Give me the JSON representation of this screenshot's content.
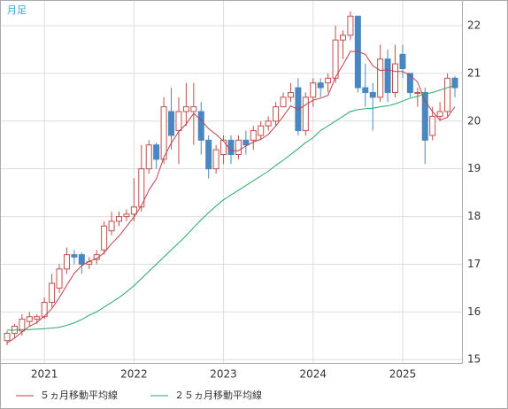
{
  "chart_data": {
    "type": "candlestick",
    "label": "月足",
    "xticks": [
      "2021",
      "2022",
      "2023",
      "2024",
      "2025"
    ],
    "ylim": [
      14.93,
      22.52
    ],
    "yticks": [
      15,
      16,
      17,
      18,
      19,
      20,
      21,
      22
    ],
    "grid": true,
    "up_color": "#ffffff",
    "up_stroke": "#c0504d",
    "down_color": "#4a86c0",
    "candles": {
      "open": [
        15.4,
        15.55,
        15.6,
        15.8,
        15.85,
        15.9,
        16.2,
        16.5,
        16.9,
        17.2,
        17.2,
        17.0,
        17.1,
        17.3,
        17.7,
        17.9,
        18.0,
        18.05,
        18.2,
        19.0,
        19.5,
        19.2,
        20.2,
        19.8,
        20.2,
        20.2,
        20.2,
        19.6,
        19.0,
        19.3,
        19.6,
        19.3,
        19.6,
        19.6,
        19.7,
        19.9,
        20.0,
        20.3,
        20.5,
        20.7,
        19.8,
        20.5,
        20.8,
        20.8,
        20.9,
        21.7,
        21.8,
        22.2,
        20.7,
        20.6,
        20.5,
        21.3,
        20.6,
        21.4,
        21.0,
        20.6,
        20.6,
        19.7,
        20.1,
        20.2,
        20.9
      ],
      "high": [
        15.6,
        15.75,
        15.95,
        16.0,
        15.95,
        16.3,
        16.8,
        17.0,
        17.35,
        17.3,
        17.25,
        17.15,
        17.3,
        17.9,
        18.1,
        18.1,
        18.15,
        18.8,
        19.5,
        19.6,
        19.55,
        20.5,
        20.7,
        20.5,
        20.8,
        20.8,
        20.4,
        19.7,
        19.5,
        19.7,
        19.7,
        19.7,
        19.8,
        19.9,
        20.0,
        20.1,
        20.4,
        20.6,
        20.8,
        20.9,
        20.6,
        20.9,
        20.9,
        21.0,
        22.0,
        21.9,
        22.3,
        22.2,
        21.2,
        20.8,
        21.6,
        21.5,
        21.6,
        21.6,
        21.0,
        20.7,
        20.7,
        20.3,
        20.4,
        21.0,
        20.95
      ],
      "low": [
        15.3,
        15.45,
        15.5,
        15.7,
        15.75,
        15.85,
        16.1,
        16.4,
        16.8,
        17.0,
        16.8,
        16.9,
        17.0,
        17.2,
        17.6,
        17.8,
        17.9,
        17.9,
        18.1,
        18.9,
        19.0,
        19.1,
        19.4,
        19.1,
        19.9,
        19.5,
        19.3,
        18.8,
        18.9,
        19.1,
        19.1,
        19.2,
        19.3,
        19.4,
        19.6,
        19.8,
        19.9,
        20.3,
        20.4,
        19.7,
        19.7,
        20.3,
        20.5,
        20.6,
        20.8,
        21.3,
        21.7,
        20.6,
        20.3,
        19.8,
        20.4,
        20.4,
        20.5,
        20.9,
        20.5,
        20.3,
        19.1,
        19.6,
        20.0,
        20.1,
        20.5
      ],
      "close": [
        15.55,
        15.7,
        15.85,
        15.9,
        15.9,
        16.2,
        16.6,
        16.9,
        17.2,
        17.15,
        17.0,
        17.05,
        17.2,
        17.8,
        17.9,
        18.0,
        18.05,
        18.2,
        19.0,
        19.5,
        19.2,
        20.3,
        19.7,
        20.2,
        20.3,
        20.3,
        19.6,
        19.0,
        19.4,
        19.6,
        19.3,
        19.6,
        19.5,
        19.8,
        19.9,
        20.0,
        20.3,
        20.5,
        20.6,
        19.8,
        20.5,
        20.8,
        20.7,
        20.9,
        21.7,
        21.8,
        22.2,
        20.7,
        20.6,
        20.5,
        21.3,
        20.6,
        21.2,
        21.1,
        20.6,
        20.6,
        19.6,
        20.1,
        20.2,
        20.9,
        20.7
      ]
    },
    "series": [
      {
        "name": "５ヵ月移動平均線",
        "color": "#c0404a",
        "values": [
          15.35,
          15.45,
          15.58,
          15.7,
          15.78,
          15.91,
          16.07,
          16.3,
          16.56,
          16.81,
          16.97,
          17.06,
          17.12,
          17.24,
          17.43,
          17.59,
          17.79,
          17.99,
          18.23,
          18.55,
          18.79,
          19.24,
          19.54,
          19.78,
          19.94,
          20.16,
          20.02,
          19.84,
          19.72,
          19.58,
          19.38,
          19.38,
          19.48,
          19.56,
          19.62,
          19.72,
          19.9,
          20.1,
          20.32,
          20.24,
          20.34,
          20.44,
          20.48,
          20.54,
          20.92,
          21.18,
          21.46,
          21.46,
          21.4,
          21.16,
          21.06,
          21.08,
          21.04,
          21.04,
          20.96,
          20.82,
          20.42,
          20.2,
          20.02,
          20.08,
          20.3
        ]
      },
      {
        "name": "２５ヵ月移動平均線",
        "color": "#2aa86a",
        "values": [
          15.62,
          15.62,
          15.63,
          15.63,
          15.64,
          15.65,
          15.66,
          15.68,
          15.72,
          15.77,
          15.84,
          15.93,
          16.0,
          16.1,
          16.2,
          16.3,
          16.42,
          16.55,
          16.7,
          16.85,
          17.0,
          17.15,
          17.3,
          17.45,
          17.6,
          17.77,
          17.93,
          18.08,
          18.22,
          18.35,
          18.45,
          18.55,
          18.65,
          18.75,
          18.85,
          18.95,
          19.07,
          19.18,
          19.3,
          19.42,
          19.55,
          19.65,
          19.8,
          19.9,
          20.0,
          20.1,
          20.2,
          20.24,
          20.26,
          20.27,
          20.3,
          20.32,
          20.36,
          20.42,
          20.48,
          20.52,
          20.57,
          20.6,
          20.65,
          20.7,
          20.75
        ]
      }
    ]
  }
}
